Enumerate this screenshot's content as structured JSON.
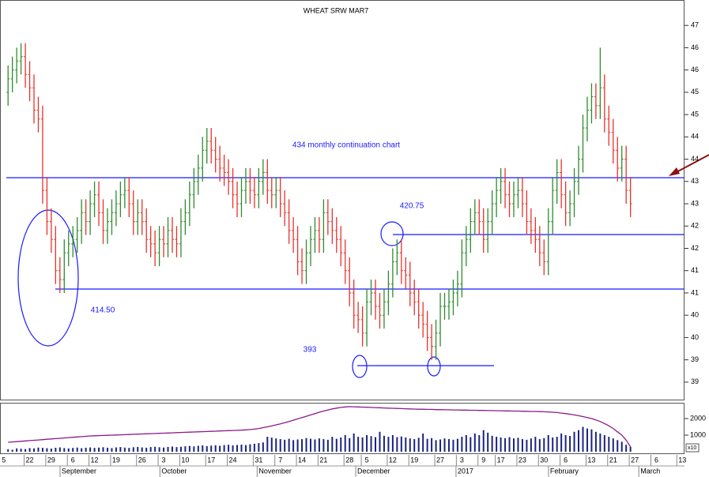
{
  "chart_data": {
    "type": "ohlc",
    "title": "WHEAT SRW MAR7",
    "open": [
      455,
      458,
      460,
      462,
      463,
      459,
      456,
      451,
      449,
      433,
      426,
      422,
      415,
      413,
      419,
      421,
      422,
      424,
      428,
      426,
      430,
      432,
      428,
      424,
      426,
      428,
      430,
      432,
      433,
      430,
      426,
      428,
      426,
      422,
      421,
      419,
      422,
      421,
      424,
      422,
      421,
      426,
      428,
      432,
      435,
      438,
      442,
      444,
      442,
      440,
      438,
      437,
      435,
      432,
      430,
      433,
      435,
      433,
      432,
      435,
      437,
      433,
      432,
      433,
      430,
      428,
      424,
      422,
      417,
      415,
      419,
      422,
      424,
      422,
      428,
      426,
      424,
      422,
      419,
      415,
      410,
      405,
      404,
      401,
      408,
      410,
      407,
      405,
      408,
      412,
      417,
      419,
      415,
      414,
      410,
      408,
      405,
      403,
      400,
      398,
      401,
      407,
      407,
      408,
      410,
      412,
      419,
      422,
      426,
      428,
      426,
      422,
      426,
      430,
      433,
      435,
      432,
      430,
      432,
      433,
      430,
      426,
      424,
      422,
      419,
      417,
      426,
      433,
      437,
      432,
      428,
      430,
      435,
      440,
      447,
      451,
      454,
      452,
      456,
      449,
      446,
      442,
      438,
      440,
      433
    ],
    "high": [
      461,
      463,
      465,
      466,
      466,
      462,
      459,
      454,
      452,
      436,
      429,
      425,
      418,
      422,
      424,
      425,
      427,
      431,
      431,
      433,
      435,
      435,
      431,
      429,
      431,
      433,
      435,
      436,
      436,
      433,
      431,
      431,
      429,
      425,
      424,
      425,
      425,
      427,
      427,
      425,
      429,
      431,
      435,
      438,
      441,
      445,
      447,
      447,
      445,
      443,
      441,
      440,
      438,
      435,
      436,
      438,
      438,
      436,
      438,
      440,
      440,
      436,
      436,
      436,
      433,
      431,
      427,
      425,
      420,
      422,
      425,
      427,
      427,
      431,
      431,
      429,
      427,
      425,
      422,
      418,
      413,
      408,
      407,
      411,
      413,
      413,
      410,
      411,
      415,
      420,
      422,
      422,
      418,
      417,
      413,
      411,
      408,
      406,
      403,
      404,
      410,
      410,
      411,
      413,
      415,
      422,
      425,
      429,
      431,
      431,
      429,
      429,
      433,
      436,
      438,
      438,
      435,
      435,
      436,
      436,
      433,
      429,
      427,
      425,
      422,
      429,
      436,
      440,
      440,
      435,
      433,
      438,
      443,
      450,
      454,
      457,
      457,
      465,
      459,
      452,
      449,
      445,
      443,
      443,
      436
    ],
    "low": [
      452,
      455,
      457,
      459,
      456,
      453,
      448,
      446,
      430,
      423,
      419,
      412,
      410,
      410,
      416,
      418,
      419,
      421,
      423,
      423,
      427,
      425,
      421,
      421,
      423,
      425,
      427,
      429,
      427,
      423,
      423,
      423,
      419,
      418,
      416,
      416,
      418,
      418,
      419,
      418,
      418,
      423,
      425,
      429,
      432,
      435,
      439,
      439,
      437,
      435,
      434,
      432,
      429,
      427,
      427,
      430,
      430,
      429,
      429,
      432,
      430,
      429,
      429,
      427,
      425,
      421,
      419,
      414,
      412,
      412,
      416,
      419,
      419,
      419,
      423,
      421,
      419,
      416,
      412,
      407,
      402,
      401,
      398,
      398,
      405,
      404,
      402,
      402,
      405,
      409,
      414,
      412,
      411,
      407,
      405,
      402,
      400,
      397,
      395,
      395,
      398,
      404,
      404,
      405,
      407,
      409,
      416,
      419,
      423,
      423,
      419,
      419,
      423,
      427,
      430,
      429,
      427,
      427,
      429,
      427,
      423,
      421,
      419,
      416,
      414,
      414,
      423,
      430,
      429,
      425,
      425,
      427,
      432,
      437,
      444,
      448,
      449,
      449,
      446,
      443,
      439,
      435,
      435,
      430,
      427
    ],
    "close": [
      458,
      460,
      462,
      463,
      459,
      456,
      451,
      449,
      433,
      426,
      422,
      415,
      413,
      419,
      421,
      422,
      424,
      428,
      426,
      430,
      432,
      428,
      424,
      426,
      428,
      430,
      432,
      433,
      430,
      426,
      428,
      426,
      422,
      421,
      419,
      422,
      421,
      424,
      422,
      421,
      426,
      428,
      432,
      435,
      438,
      442,
      444,
      442,
      440,
      438,
      437,
      435,
      432,
      430,
      433,
      435,
      433,
      432,
      435,
      437,
      433,
      432,
      433,
      430,
      428,
      424,
      422,
      417,
      415,
      419,
      422,
      424,
      422,
      428,
      426,
      424,
      422,
      419,
      415,
      410,
      405,
      404,
      401,
      408,
      410,
      407,
      405,
      408,
      412,
      417,
      419,
      415,
      414,
      410,
      408,
      405,
      403,
      400,
      398,
      401,
      407,
      407,
      408,
      410,
      412,
      419,
      422,
      426,
      428,
      426,
      422,
      426,
      430,
      433,
      435,
      432,
      430,
      432,
      433,
      430,
      426,
      424,
      422,
      419,
      417,
      426,
      433,
      437,
      432,
      428,
      430,
      435,
      440,
      447,
      451,
      454,
      452,
      456,
      449,
      446,
      442,
      438,
      440,
      433,
      430
    ],
    "up_color": "#2e8b2e",
    "down_color": "#e8322b",
    "xlim": [
      -1.5,
      156.5
    ],
    "xticks": [
      {
        "value": -1,
        "label": "5"
      },
      {
        "value": 5,
        "label": "22"
      },
      {
        "value": 10,
        "label": "29"
      },
      {
        "value": 15,
        "label": "6"
      },
      {
        "value": 20,
        "label": "12"
      },
      {
        "value": 25,
        "label": "19"
      },
      {
        "value": 31,
        "label": "26"
      },
      {
        "value": 36,
        "label": "3"
      },
      {
        "value": 41,
        "label": "10"
      },
      {
        "value": 47,
        "label": "17"
      },
      {
        "value": 52,
        "label": "24"
      },
      {
        "value": 58,
        "label": "31"
      },
      {
        "value": 63,
        "label": "7"
      },
      {
        "value": 68,
        "label": "14"
      },
      {
        "value": 73,
        "label": "21"
      },
      {
        "value": 79,
        "label": "28"
      },
      {
        "value": 83,
        "label": "5"
      },
      {
        "value": 89,
        "label": "12"
      },
      {
        "value": 94,
        "label": "19"
      },
      {
        "value": 100,
        "label": "27"
      },
      {
        "value": 105,
        "label": "3"
      },
      {
        "value": 110,
        "label": "9"
      },
      {
        "value": 114,
        "label": "17"
      },
      {
        "value": 119,
        "label": "23"
      },
      {
        "value": 124,
        "label": "30"
      },
      {
        "value": 129,
        "label": "6"
      },
      {
        "value": 135,
        "label": "13"
      },
      {
        "value": 140,
        "label": "21"
      },
      {
        "value": 145,
        "label": "27"
      },
      {
        "value": 150,
        "label": "6"
      },
      {
        "value": 156,
        "label": "13"
      }
    ],
    "months": [
      {
        "value": 12.4,
        "label": "September"
      },
      {
        "value": 35.5,
        "label": "October"
      },
      {
        "value": 58,
        "label": "November"
      },
      {
        "value": 80.8,
        "label": "December"
      },
      {
        "value": 104,
        "label": "2017"
      },
      {
        "value": 125.4,
        "label": "February"
      },
      {
        "value": 146.3,
        "label": "March"
      }
    ],
    "ylim": [
      385.9,
      475.7
    ],
    "yticks": [
      {
        "value": 470,
        "label": "47"
      },
      {
        "value": 465,
        "label": "46"
      },
      {
        "value": 460,
        "label": "46"
      },
      {
        "value": 455,
        "label": "45"
      },
      {
        "value": 450,
        "label": "45"
      },
      {
        "value": 445,
        "label": "44"
      },
      {
        "value": 440,
        "label": "44"
      },
      {
        "value": 435,
        "label": "43"
      },
      {
        "value": 430,
        "label": "43"
      },
      {
        "value": 425,
        "label": "42"
      },
      {
        "value": 420,
        "label": "42"
      },
      {
        "value": 415,
        "label": "41"
      },
      {
        "value": 410,
        "label": "41"
      },
      {
        "value": 405,
        "label": "40"
      },
      {
        "value": 400,
        "label": "40"
      },
      {
        "value": 395,
        "label": "39"
      },
      {
        "value": 390,
        "label": "39"
      }
    ],
    "annotations": [
      "434 monthly continuation chart",
      "420.75",
      "414.50",
      "393"
    ],
    "volume": {
      "color": "#1a237e",
      "ylim": [
        -143,
        2952
      ],
      "yticks": [
        1000,
        2000
      ],
      "unit_label": "x10",
      "values": [
        150,
        120,
        200,
        180,
        160,
        220,
        200,
        250,
        230,
        210,
        190,
        240,
        260,
        220,
        200,
        230,
        250,
        210,
        240,
        260,
        230,
        250,
        270,
        240,
        220,
        260,
        280,
        250,
        230,
        270,
        290,
        260,
        240,
        280,
        300,
        270,
        250,
        290,
        310,
        280,
        300,
        330,
        350,
        320,
        360,
        380,
        340,
        370,
        390,
        360,
        400,
        420,
        380,
        410,
        430,
        400,
        450,
        480,
        520,
        560,
        900,
        850,
        800,
        760,
        720,
        780,
        700,
        740,
        760,
        820,
        780,
        740,
        800,
        760,
        720,
        900,
        780,
        860,
        1000,
        820,
        1100,
        900,
        860,
        1000,
        940,
        880,
        1200,
        960,
        900,
        1000,
        880,
        920,
        860,
        800,
        760,
        840,
        1100,
        780,
        820,
        700,
        740,
        800,
        760,
        720,
        780,
        900,
        1000,
        880,
        1100,
        1000,
        1300,
        1150,
        960,
        900,
        860,
        820,
        880,
        800,
        840,
        760,
        720,
        800,
        900,
        760,
        820,
        1000,
        860,
        900,
        1100,
        1000,
        950,
        1200,
        1300,
        1500,
        1400,
        1350,
        1200,
        1100,
        1000,
        900,
        800,
        700,
        600,
        420,
        300
      ],
      "open_interest": {
        "color": "#8b1a8b",
        "values": [
          570,
          590,
          610,
          630,
          650,
          670,
          690,
          710,
          730,
          750,
          770,
          790,
          810,
          830,
          850,
          870,
          890,
          910,
          930,
          950,
          960,
          970,
          980,
          990,
          1000,
          1010,
          1020,
          1030,
          1040,
          1050,
          1060,
          1070,
          1080,
          1090,
          1100,
          1110,
          1120,
          1130,
          1140,
          1150,
          1160,
          1170,
          1180,
          1190,
          1200,
          1210,
          1220,
          1230,
          1240,
          1250,
          1260,
          1270,
          1280,
          1290,
          1300,
          1320,
          1340,
          1360,
          1400,
          1450,
          1500,
          1560,
          1620,
          1680,
          1750,
          1820,
          1900,
          1980,
          2060,
          2140,
          2220,
          2300,
          2380,
          2450,
          2520,
          2580,
          2630,
          2670,
          2700,
          2720,
          2710,
          2700,
          2690,
          2680,
          2670,
          2660,
          2650,
          2640,
          2630,
          2620,
          2610,
          2600,
          2590,
          2580,
          2570,
          2560,
          2560,
          2550,
          2550,
          2540,
          2540,
          2530,
          2530,
          2520,
          2520,
          2510,
          2510,
          2500,
          2500,
          2490,
          2490,
          2480,
          2480,
          2470,
          2470,
          2460,
          2460,
          2450,
          2450,
          2440,
          2440,
          2430,
          2430,
          2420,
          2410,
          2400,
          2380,
          2360,
          2330,
          2300,
          2260,
          2220,
          2170,
          2120,
          2060,
          2000,
          1920,
          1820,
          1700,
          1560,
          1400,
          1200,
          1000,
          700,
          300
        ]
      }
    }
  }
}
